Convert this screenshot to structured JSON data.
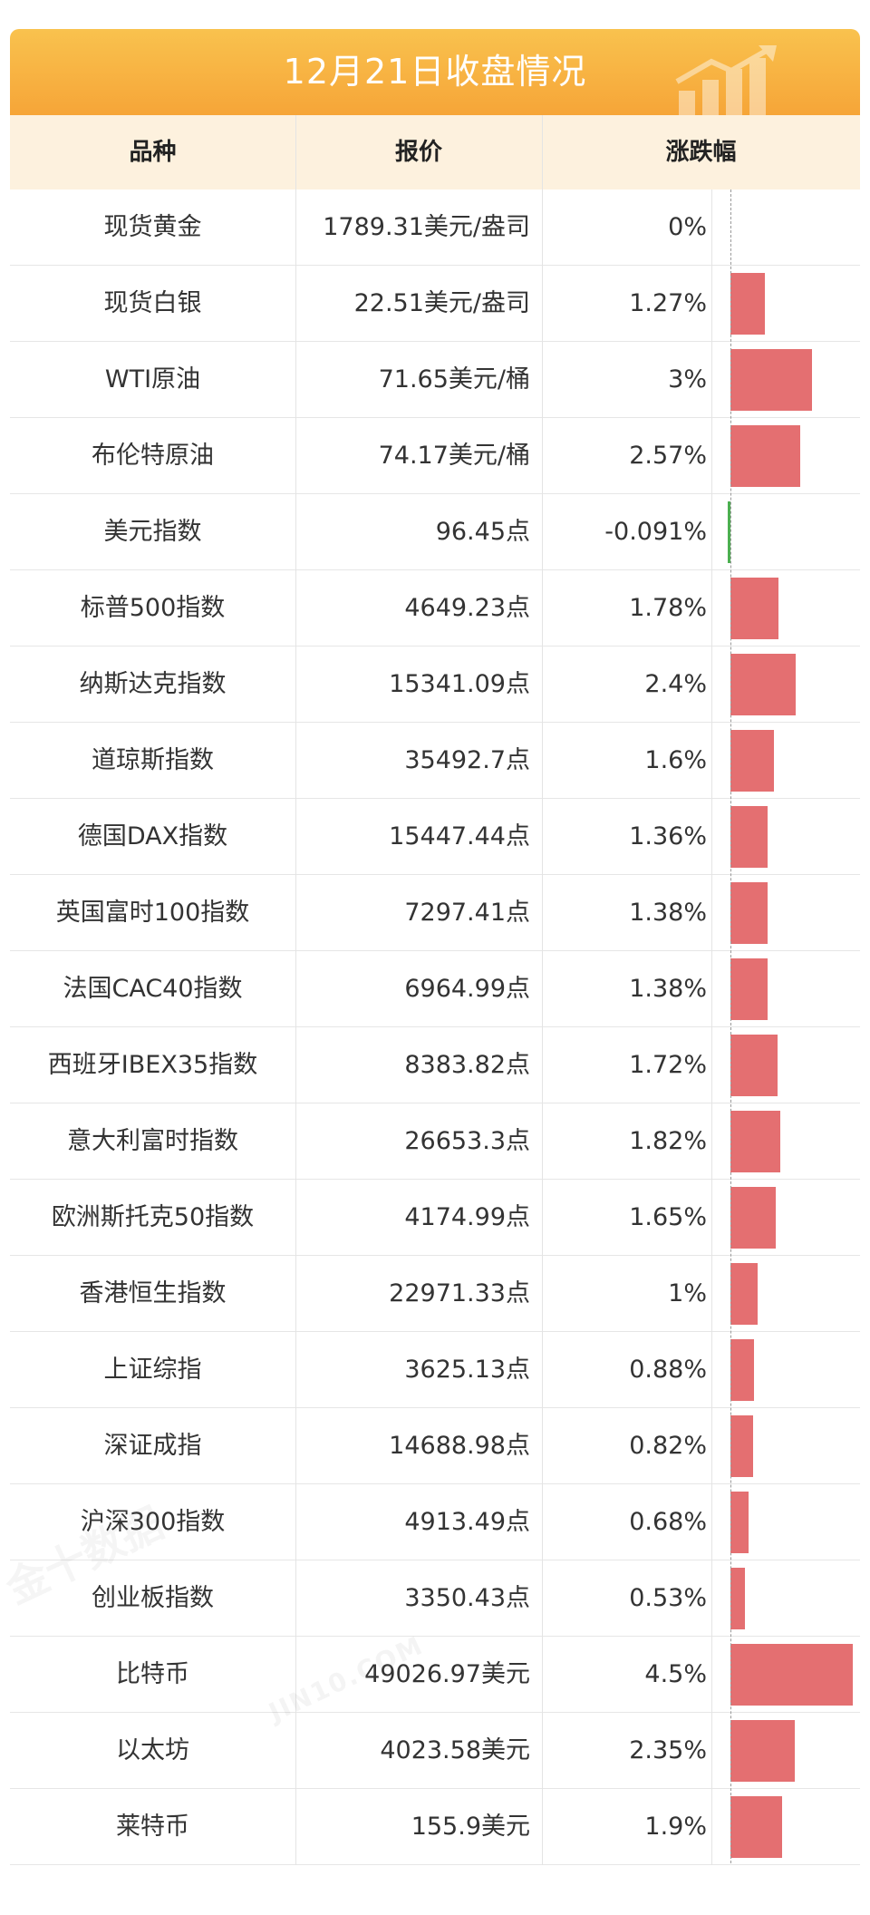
{
  "title": "12月21日收盘情况",
  "headers": {
    "name": "品种",
    "price": "报价",
    "change": "涨跌幅"
  },
  "watermark": {
    "cn": "金十数据",
    "en": "JIN10.COM"
  },
  "colors": {
    "banner": "#f7b13f",
    "header_bg": "#fdf1de",
    "positive": "#e46f71",
    "negative": "#4caf50"
  },
  "chart_data": {
    "type": "bar",
    "orientation": "horizontal",
    "categories": [
      "现货黄金",
      "现货白银",
      "WTI原油",
      "布伦特原油",
      "美元指数",
      "标普500指数",
      "纳斯达克指数",
      "道琼斯指数",
      "德国DAX指数",
      "英国富时100指数",
      "法国CAC40指数",
      "西班牙IBEX35指数",
      "意大利富时指数",
      "欧洲斯托克50指数",
      "香港恒生指数",
      "上证综指",
      "深证成指",
      "沪深300指数",
      "创业板指数",
      "比特币",
      "以太坊",
      "莱特币"
    ],
    "values": [
      0,
      1.27,
      3,
      2.57,
      -0.091,
      1.78,
      2.4,
      1.6,
      1.36,
      1.38,
      1.38,
      1.72,
      1.82,
      1.65,
      1,
      0.88,
      0.82,
      0.68,
      0.53,
      4.5,
      2.35,
      1.9
    ],
    "unit": "%",
    "xlim": [
      0,
      4.5
    ]
  },
  "rows": [
    {
      "name": "现货黄金",
      "price": "1789.31美元/盎司",
      "change": "0%"
    },
    {
      "name": "现货白银",
      "price": "22.51美元/盎司",
      "change": "1.27%"
    },
    {
      "name": "WTI原油",
      "price": "71.65美元/桶",
      "change": "3%"
    },
    {
      "name": "布伦特原油",
      "price": "74.17美元/桶",
      "change": "2.57%"
    },
    {
      "name": "美元指数",
      "price": "96.45点",
      "change": "-0.091%"
    },
    {
      "name": "标普500指数",
      "price": "4649.23点",
      "change": "1.78%"
    },
    {
      "name": "纳斯达克指数",
      "price": "15341.09点",
      "change": "2.4%"
    },
    {
      "name": "道琼斯指数",
      "price": "35492.7点",
      "change": "1.6%"
    },
    {
      "name": "德国DAX指数",
      "price": "15447.44点",
      "change": "1.36%"
    },
    {
      "name": "英国富时100指数",
      "price": "7297.41点",
      "change": "1.38%"
    },
    {
      "name": "法国CAC40指数",
      "price": "6964.99点",
      "change": "1.38%"
    },
    {
      "name": "西班牙IBEX35指数",
      "price": "8383.82点",
      "change": "1.72%"
    },
    {
      "name": "意大利富时指数",
      "price": "26653.3点",
      "change": "1.82%"
    },
    {
      "name": "欧洲斯托克50指数",
      "price": "4174.99点",
      "change": "1.65%"
    },
    {
      "name": "香港恒生指数",
      "price": "22971.33点",
      "change": "1%"
    },
    {
      "name": "上证综指",
      "price": "3625.13点",
      "change": "0.88%"
    },
    {
      "name": "深证成指",
      "price": "14688.98点",
      "change": "0.82%"
    },
    {
      "name": "沪深300指数",
      "price": "4913.49点",
      "change": "0.68%"
    },
    {
      "name": "创业板指数",
      "price": "3350.43点",
      "change": "0.53%"
    },
    {
      "name": "比特币",
      "price": "49026.97美元",
      "change": "4.5%"
    },
    {
      "name": "以太坊",
      "price": "4023.58美元",
      "change": "2.35%"
    },
    {
      "name": "莱特币",
      "price": "155.9美元",
      "change": "1.9%"
    }
  ]
}
